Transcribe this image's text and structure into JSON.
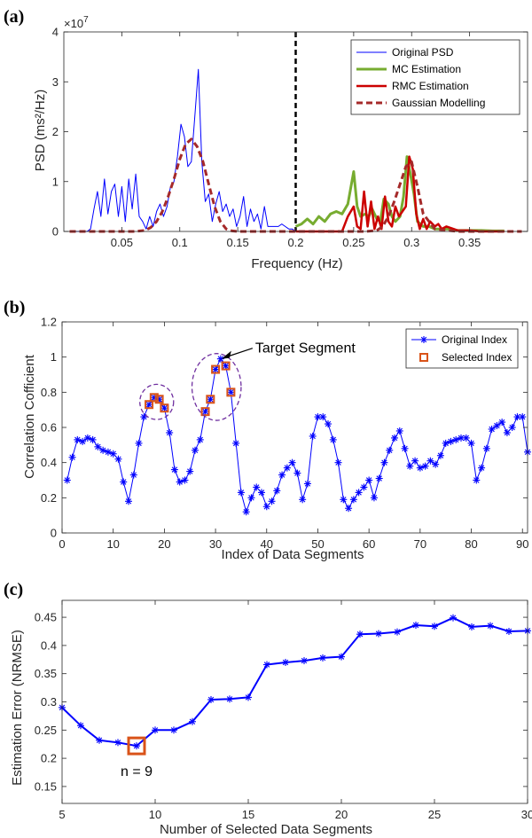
{
  "chart_data": [
    {
      "panel": "(a)",
      "type": "line",
      "xlabel": "Frequency (Hz)",
      "ylabel": "PSD (ms²/Hz)",
      "y_exponent_label": "×10",
      "y_exponent_power": "7",
      "xlim": [
        0,
        0.4
      ],
      "ylim": [
        0,
        4
      ],
      "xticks": [
        0.05,
        0.1,
        0.15,
        0.2,
        0.25,
        0.3,
        0.35
      ],
      "xtick_labels": [
        "0.05",
        "0.1",
        "0.15",
        "0.2",
        "0.25",
        "0.3",
        "0.35"
      ],
      "yticks": [
        0,
        1,
        2,
        3,
        4
      ],
      "ytick_labels": [
        "0",
        "1",
        "2",
        "3",
        "4"
      ],
      "divider_x": 0.2,
      "legend_position": "top-right",
      "series": [
        {
          "name": "Original PSD",
          "color": "#0000ff",
          "width": 1,
          "dash": "",
          "x": [
            0.005,
            0.01,
            0.015,
            0.02,
            0.023,
            0.026,
            0.029,
            0.032,
            0.035,
            0.038,
            0.041,
            0.044,
            0.047,
            0.05,
            0.053,
            0.056,
            0.059,
            0.062,
            0.065,
            0.068,
            0.071,
            0.074,
            0.077,
            0.08,
            0.083,
            0.086,
            0.089,
            0.092,
            0.095,
            0.098,
            0.101,
            0.104,
            0.107,
            0.11,
            0.113,
            0.116,
            0.119,
            0.122,
            0.125,
            0.128,
            0.131,
            0.134,
            0.137,
            0.14,
            0.143,
            0.146,
            0.149,
            0.152,
            0.155,
            0.158,
            0.161,
            0.164,
            0.167,
            0.17,
            0.173,
            0.176,
            0.179,
            0.182,
            0.185,
            0.188,
            0.191,
            0.194,
            0.197,
            0.2
          ],
          "y": [
            0,
            0,
            0,
            0,
            0.05,
            0.45,
            0.8,
            0.3,
            1.05,
            0.35,
            0.8,
            0.95,
            0.3,
            0.9,
            0.2,
            1.05,
            0.45,
            1.15,
            0.3,
            0.2,
            0.05,
            0.3,
            0.1,
            0.4,
            0.55,
            0.3,
            0.5,
            0.9,
            1.0,
            1.5,
            2.15,
            1.9,
            1.3,
            1.4,
            2.3,
            3.25,
            1.4,
            0.6,
            0.75,
            0.2,
            0.55,
            0.8,
            0.4,
            0.55,
            0.3,
            0.45,
            0.1,
            0.3,
            0.7,
            0.1,
            0.45,
            0.2,
            0.35,
            0.05,
            0.5,
            0.1,
            0.1,
            0.1,
            0.1,
            0.15,
            0.1,
            0.05,
            0.05,
            0.0
          ]
        },
        {
          "name": "MC Estimation",
          "color": "#77ac30",
          "width": 3,
          "dash": "",
          "x": [
            0.2,
            0.205,
            0.21,
            0.215,
            0.22,
            0.225,
            0.23,
            0.235,
            0.24,
            0.245,
            0.25,
            0.253,
            0.256,
            0.26,
            0.263,
            0.266,
            0.27,
            0.273,
            0.276,
            0.28,
            0.283,
            0.286,
            0.29,
            0.293,
            0.296,
            0.299,
            0.302,
            0.305,
            0.31,
            0.315,
            0.32,
            0.33,
            0.34,
            0.35,
            0.36,
            0.37,
            0.38
          ],
          "y": [
            0.1,
            0.15,
            0.25,
            0.15,
            0.3,
            0.2,
            0.35,
            0.4,
            0.35,
            0.55,
            1.2,
            0.5,
            0.3,
            0.35,
            0.3,
            0.45,
            0.25,
            0.2,
            0.65,
            0.55,
            0.3,
            0.2,
            0.3,
            0.7,
            1.5,
            1.15,
            0.75,
            0.2,
            0.1,
            0.1,
            0.05,
            0.05,
            0.02,
            0.02,
            0.02,
            0.01,
            0.01
          ]
        },
        {
          "name": "RMC Estimation",
          "color": "#cc0000",
          "width": 2.5,
          "dash": "",
          "x": [
            0.2,
            0.22,
            0.24,
            0.245,
            0.25,
            0.253,
            0.256,
            0.259,
            0.262,
            0.265,
            0.268,
            0.271,
            0.274,
            0.277,
            0.28,
            0.283,
            0.286,
            0.289,
            0.292,
            0.295,
            0.298,
            0.301,
            0.304,
            0.307,
            0.31,
            0.313,
            0.316,
            0.32,
            0.323,
            0.326,
            0.33,
            0.34,
            0.35,
            0.36,
            0.37,
            0.38
          ],
          "y": [
            0,
            0,
            0,
            0.3,
            0.5,
            0.1,
            0.05,
            0.8,
            0.1,
            0.6,
            0.05,
            0.3,
            0.05,
            0.7,
            0.2,
            0.1,
            0.5,
            0.3,
            0.4,
            0.5,
            1.5,
            1.25,
            0.35,
            0.05,
            0.25,
            0.05,
            0.2,
            0.1,
            0.15,
            0.05,
            0.1,
            0.02,
            0.02,
            0,
            0,
            0
          ]
        },
        {
          "name": "Gaussian Modelling",
          "color": "#a52a2a",
          "width": 3,
          "dash": "7,4",
          "x": [
            0.005,
            0.02,
            0.04,
            0.06,
            0.07,
            0.075,
            0.08,
            0.085,
            0.09,
            0.095,
            0.1,
            0.105,
            0.11,
            0.115,
            0.12,
            0.125,
            0.13,
            0.135,
            0.14,
            0.145,
            0.15,
            0.16,
            0.18,
            0.2,
            0.22,
            0.24,
            0.26,
            0.27,
            0.275,
            0.28,
            0.285,
            0.29,
            0.295,
            0.3,
            0.305,
            0.31,
            0.32,
            0.34,
            0.36,
            0.38,
            0.395
          ],
          "y": [
            0,
            0,
            0,
            0,
            0.02,
            0.08,
            0.2,
            0.4,
            0.7,
            1.05,
            1.45,
            1.75,
            1.85,
            1.7,
            1.4,
            0.95,
            0.5,
            0.2,
            0.05,
            0.01,
            0,
            0,
            0,
            0,
            0,
            0,
            0,
            0.02,
            0.1,
            0.3,
            0.6,
            0.95,
            1.3,
            1.4,
            0.9,
            0.35,
            0.05,
            0,
            0,
            0,
            0
          ]
        }
      ]
    },
    {
      "panel": "(b)",
      "type": "line",
      "xlabel": "Index of Data Segments",
      "ylabel": "Correlation Cofficient",
      "xlim": [
        0,
        91
      ],
      "ylim": [
        0,
        1.2
      ],
      "xticks": [
        0,
        10,
        20,
        30,
        40,
        50,
        60,
        70,
        80,
        90
      ],
      "xtick_labels": [
        "0",
        "10",
        "20",
        "30",
        "40",
        "50",
        "60",
        "70",
        "80",
        "90"
      ],
      "yticks": [
        0,
        0.2,
        0.4,
        0.6,
        0.8,
        1,
        1.2
      ],
      "ytick_labels": [
        "0",
        "0.2",
        "0.4",
        "0.6",
        "0.8",
        "1",
        "1.2"
      ],
      "legend_position": "top-right",
      "annotation": "Target Segment",
      "annotation_point": [
        31,
        0.99
      ],
      "series": [
        {
          "name": "Original Index",
          "color": "#0000ff",
          "marker": "asterisk",
          "x": [
            1,
            2,
            3,
            4,
            5,
            6,
            7,
            8,
            9,
            10,
            11,
            12,
            13,
            14,
            15,
            16,
            17,
            18,
            19,
            20,
            21,
            22,
            23,
            24,
            25,
            26,
            27,
            28,
            29,
            30,
            31,
            32,
            33,
            34,
            35,
            36,
            37,
            38,
            39,
            40,
            41,
            42,
            43,
            44,
            45,
            46,
            47,
            48,
            49,
            50,
            51,
            52,
            53,
            54,
            55,
            56,
            57,
            58,
            59,
            60,
            61,
            62,
            63,
            64,
            65,
            66,
            67,
            68,
            69,
            70,
            71,
            72,
            73,
            74,
            75,
            76,
            77,
            78,
            79,
            80,
            81,
            82,
            83,
            84,
            85,
            86,
            87,
            88,
            89,
            90,
            91
          ],
          "y": [
            0.3,
            0.43,
            0.53,
            0.52,
            0.54,
            0.53,
            0.49,
            0.47,
            0.46,
            0.45,
            0.42,
            0.29,
            0.18,
            0.33,
            0.51,
            0.66,
            0.73,
            0.77,
            0.76,
            0.71,
            0.57,
            0.36,
            0.29,
            0.3,
            0.35,
            0.47,
            0.53,
            0.69,
            0.76,
            0.93,
            0.99,
            0.95,
            0.8,
            0.51,
            0.23,
            0.12,
            0.2,
            0.26,
            0.23,
            0.15,
            0.18,
            0.24,
            0.33,
            0.37,
            0.4,
            0.34,
            0.19,
            0.28,
            0.55,
            0.66,
            0.66,
            0.62,
            0.53,
            0.4,
            0.19,
            0.14,
            0.19,
            0.23,
            0.26,
            0.3,
            0.2,
            0.31,
            0.4,
            0.47,
            0.54,
            0.58,
            0.48,
            0.38,
            0.41,
            0.37,
            0.38,
            0.41,
            0.39,
            0.44,
            0.51,
            0.52,
            0.53,
            0.54,
            0.54,
            0.51,
            0.3,
            0.37,
            0.48,
            0.59,
            0.61,
            0.63,
            0.57,
            0.6,
            0.66,
            0.66,
            0.46
          ]
        },
        {
          "name": "Selected Index",
          "color": "#d95319",
          "marker": "square",
          "x": [
            17,
            18,
            19,
            20,
            28,
            29,
            30,
            32,
            33
          ],
          "y": [
            0.73,
            0.77,
            0.76,
            0.71,
            0.69,
            0.76,
            0.93,
            0.95,
            0.8
          ]
        }
      ],
      "highlight_ellipses": [
        {
          "cx": 18.5,
          "cy": 0.745,
          "rx": 3.3,
          "ry": 0.1
        },
        {
          "cx": 30.2,
          "cy": 0.83,
          "rx": 4.8,
          "ry": 0.19
        }
      ]
    },
    {
      "panel": "(c)",
      "type": "line",
      "xlabel": "Number of Selected Data Segments",
      "ylabel": "Estimation Error (NRMSE)",
      "xlim": [
        5,
        30
      ],
      "ylim": [
        0.12,
        0.48
      ],
      "xticks": [
        5,
        10,
        15,
        20,
        25,
        30
      ],
      "xtick_labels": [
        "5",
        "10",
        "15",
        "20",
        "25",
        "30"
      ],
      "yticks": [
        0.15,
        0.2,
        0.25,
        0.3,
        0.35,
        0.4,
        0.45
      ],
      "ytick_labels": [
        "0.15",
        "0.2",
        "0.25",
        "0.3",
        "0.35",
        "0.4",
        "0.45"
      ],
      "annotation": "n = 9",
      "highlight_point": [
        9,
        0.222
      ],
      "series": [
        {
          "color": "#0000ff",
          "marker": "asterisk",
          "x": [
            5,
            6,
            7,
            8,
            9,
            10,
            11,
            12,
            13,
            14,
            15,
            16,
            17,
            18,
            19,
            20,
            21,
            22,
            23,
            24,
            25,
            26,
            27,
            28,
            29,
            30
          ],
          "y": [
            0.29,
            0.258,
            0.232,
            0.228,
            0.222,
            0.25,
            0.25,
            0.265,
            0.304,
            0.305,
            0.308,
            0.366,
            0.37,
            0.373,
            0.378,
            0.38,
            0.42,
            0.421,
            0.424,
            0.436,
            0.434,
            0.449,
            0.433,
            0.435,
            0.425,
            0.426
          ]
        }
      ]
    }
  ],
  "colors": {
    "axis": "#262626",
    "highlight_box": "#d95319",
    "ellipse": "#7030a0",
    "divider": "#000000"
  }
}
